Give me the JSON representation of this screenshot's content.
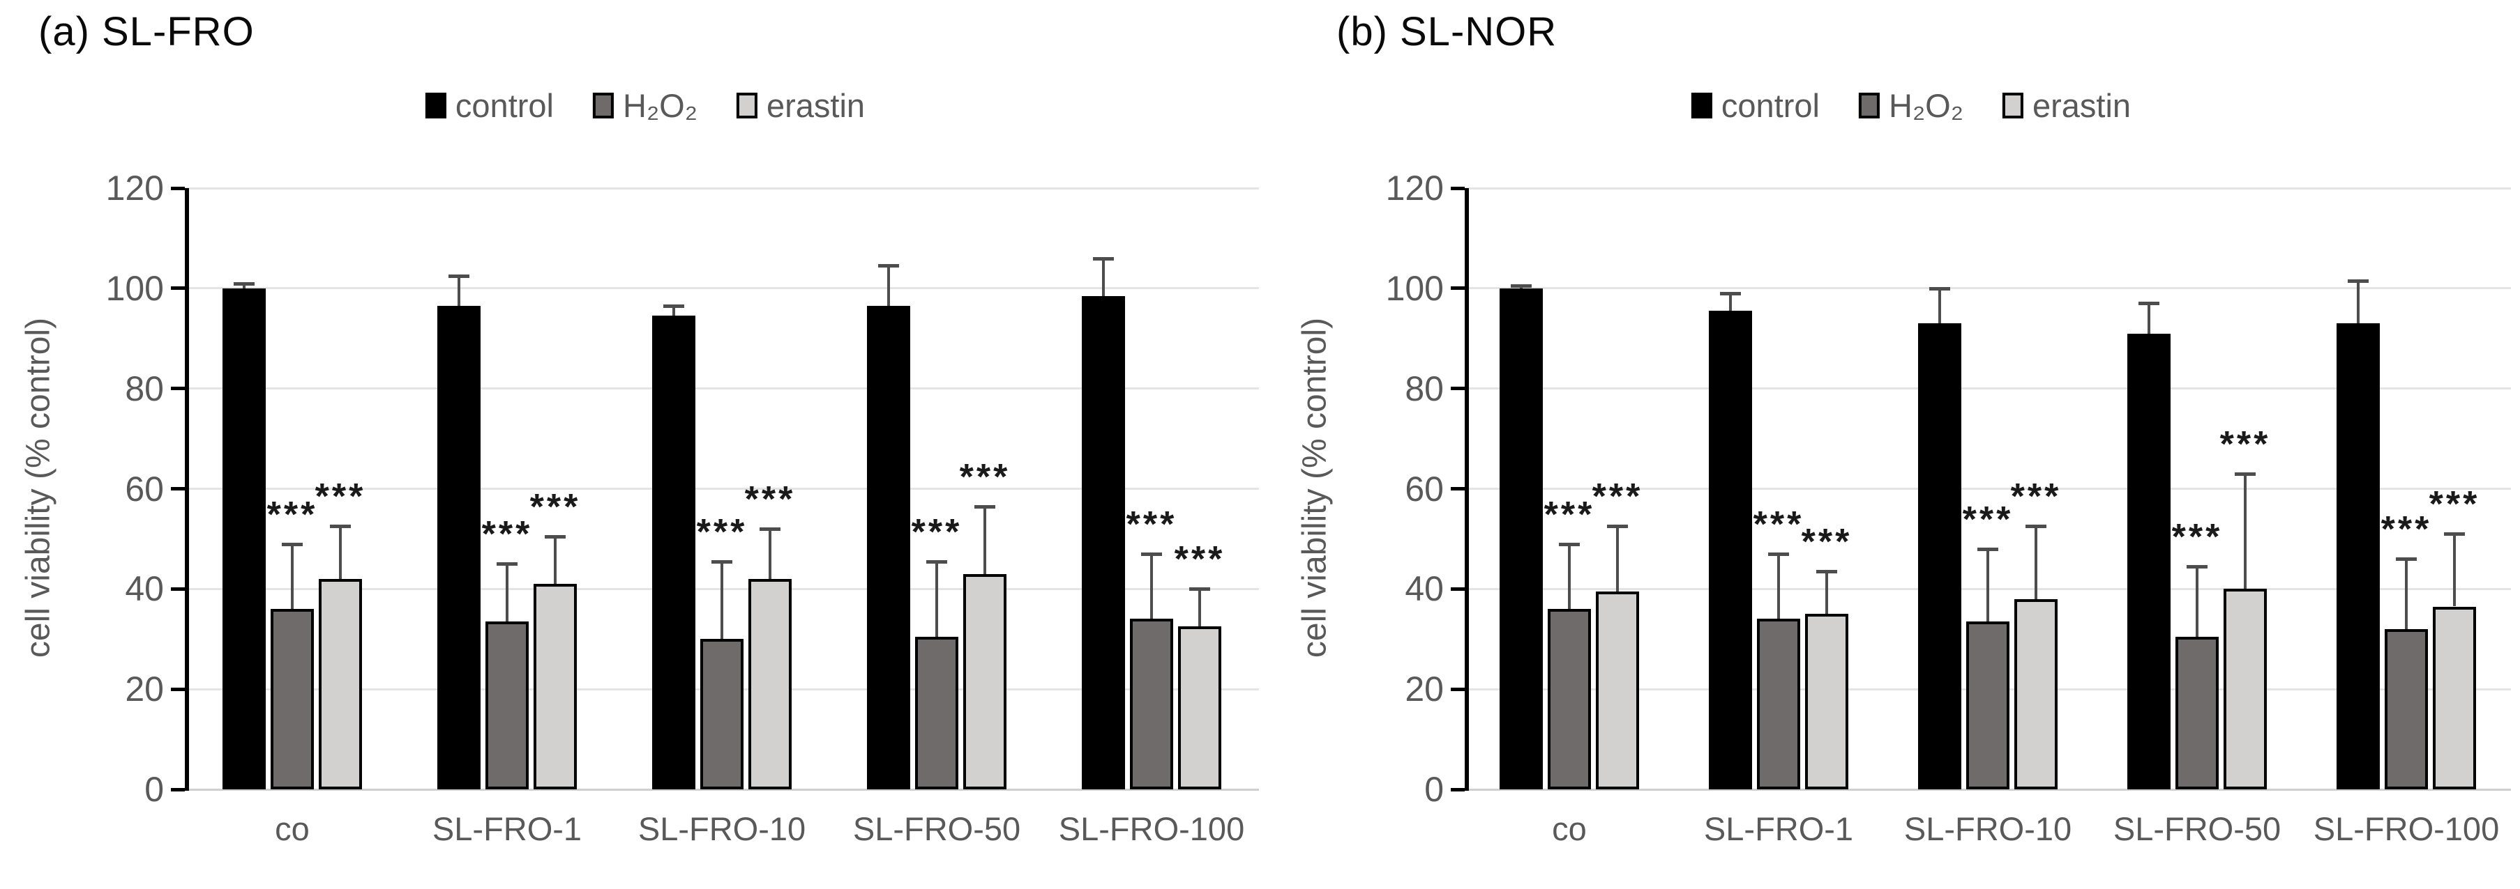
{
  "figure": {
    "background": "#ffffff",
    "y_axis_label": "cell viability (% control)",
    "y_ticks": [
      0,
      20,
      40,
      60,
      80,
      100,
      120
    ],
    "y_max": 120,
    "grid_color": "#e4e4e4",
    "zero_line_color": "#cfcfcf",
    "axis_color": "#000000",
    "label_color": "#595959",
    "error_bar_color": "#4d4d4d",
    "sig_color": "#1a1a1a"
  },
  "chart_data": [
    {
      "type": "bar",
      "panel": "a",
      "title": "(a) SL-FRO",
      "ylabel": "cell viability (% control)",
      "ylim": [
        0,
        120
      ],
      "grid": true,
      "legend_position": "top-center",
      "categories": [
        "co",
        "SL-FRO-1",
        "SL-FRO-10",
        "SL-FRO-50",
        "SL-FRO-100"
      ],
      "series": [
        {
          "name": "control",
          "color": "#000000",
          "border": "#000000",
          "values": [
            100,
            96.5,
            94.5,
            96.5,
            98.5
          ],
          "errors": [
            1,
            6,
            2,
            8,
            7.5
          ],
          "sig": [
            "",
            "",
            "",
            "",
            ""
          ]
        },
        {
          "name": "H₂O₂",
          "color": "#6e6b6a",
          "border": "#000000",
          "values": [
            36,
            33.5,
            30,
            30.5,
            34
          ],
          "errors": [
            13,
            11.5,
            15.5,
            15,
            13
          ],
          "sig": [
            "***",
            "***",
            "***",
            "***",
            "***"
          ]
        },
        {
          "name": "erastin",
          "color": "#d2d1d0",
          "border": "#000000",
          "values": [
            42,
            41,
            42,
            43,
            32.5
          ],
          "errors": [
            10.5,
            9.5,
            10,
            13.5,
            7.5
          ],
          "sig": [
            "***",
            "***",
            "***",
            "***",
            "***"
          ]
        }
      ]
    },
    {
      "type": "bar",
      "panel": "b",
      "title": "(b) SL-NOR",
      "ylabel": "cell viability (% control)",
      "ylim": [
        0,
        120
      ],
      "grid": true,
      "legend_position": "top-center",
      "categories": [
        "co",
        "SL-FRO-1",
        "SL-FRO-10",
        "SL-FRO-50",
        "SL-FRO-100"
      ],
      "series": [
        {
          "name": "control",
          "color": "#000000",
          "border": "#000000",
          "values": [
            100,
            95.5,
            93,
            91,
            93
          ],
          "errors": [
            0.5,
            3.5,
            7,
            6,
            8.5
          ],
          "sig": [
            "",
            "",
            "",
            "",
            ""
          ]
        },
        {
          "name": "H₂O₂",
          "color": "#6e6b6a",
          "border": "#000000",
          "values": [
            36,
            34,
            33.5,
            30.5,
            32
          ],
          "errors": [
            13,
            13,
            14.5,
            14,
            14
          ],
          "sig": [
            "***",
            "***",
            "***",
            "***",
            "***"
          ]
        },
        {
          "name": "erastin",
          "color": "#d2d1d0",
          "border": "#000000",
          "values": [
            39.5,
            35,
            38,
            40,
            36.5
          ],
          "errors": [
            13,
            8.5,
            14.5,
            23,
            14.5
          ],
          "sig": [
            "***",
            "***",
            "***",
            "***",
            "***"
          ]
        }
      ]
    }
  ]
}
